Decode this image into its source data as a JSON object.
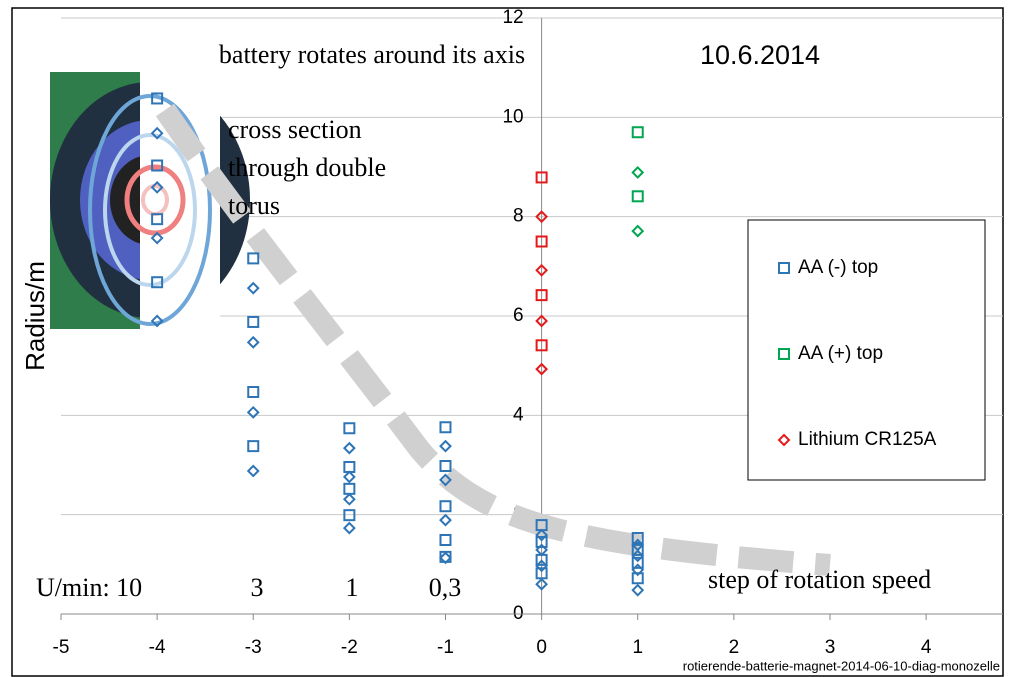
{
  "chart_data": {
    "type": "scatter",
    "title": "battery rotates around its axis",
    "date": "10.6.2014",
    "y_label": "Radius/m",
    "note_lines": [
      "cross section",
      "through double",
      "torus"
    ],
    "speed_labels": [
      "U/min: 10",
      "3",
      "1",
      "0,3"
    ],
    "trend_label": "step of rotation speed",
    "footer": "rotierende-batterie-magnet-2014-06-10-diag-monozelle",
    "xlim": [
      -5,
      4.8
    ],
    "ylim": [
      0,
      12
    ],
    "xticks": [
      -5,
      -4,
      -3,
      -2,
      -1,
      0,
      1,
      2,
      3,
      4
    ],
    "yticks": [
      0,
      2,
      4,
      6,
      8,
      10,
      12
    ],
    "grid": true,
    "series": [
      {
        "name": "AA (-) top",
        "color": "#2e75b6",
        "marker": "square",
        "x": [
          -4,
          -4,
          -4,
          -4,
          -3,
          -3,
          -3,
          -3,
          -2,
          -2,
          -2,
          -2,
          -1,
          -1,
          -1,
          -1,
          -1,
          0,
          0,
          0,
          0,
          1,
          1,
          1,
          1
        ],
        "values": [
          10.38,
          9.03,
          7.95,
          6.68,
          7.16,
          5.88,
          4.47,
          3.38,
          3.74,
          2.96,
          2.52,
          1.99,
          3.76,
          2.98,
          2.17,
          1.49,
          1.15,
          1.79,
          1.45,
          1.09,
          0.82,
          1.53,
          1.29,
          1.03,
          0.72
        ]
      },
      {
        "color": "#2e75b6",
        "marker": "diamond",
        "x": [
          -4,
          -4,
          -4,
          -4,
          -3,
          -3,
          -3,
          -3,
          -2,
          -2,
          -2,
          -2,
          -1,
          -1,
          -1,
          -1,
          0,
          0,
          0,
          0,
          1,
          1,
          1,
          1
        ],
        "values": [
          9.68,
          8.59,
          7.57,
          5.9,
          6.56,
          5.47,
          4.06,
          2.88,
          3.34,
          2.76,
          2.31,
          1.73,
          3.38,
          2.7,
          1.89,
          1.13,
          1.59,
          1.29,
          0.97,
          0.6,
          1.39,
          1.17,
          0.89,
          0.48
        ]
      },
      {
        "name": "AA (+) top",
        "color": "#00a650",
        "marker": "square",
        "x": [
          1,
          1
        ],
        "values": [
          9.7,
          8.41
        ]
      },
      {
        "color": "#00a650",
        "marker": "diamond",
        "x": [
          1,
          1
        ],
        "values": [
          8.89,
          7.71
        ]
      },
      {
        "color": "#e31a1c",
        "marker": "square",
        "x": [
          0,
          0,
          0,
          0
        ],
        "values": [
          8.79,
          7.5,
          6.42,
          5.41
        ]
      },
      {
        "name": "Lithium CR125A",
        "color": "#e31a1c",
        "marker": "diamond",
        "x": [
          0,
          0,
          0,
          0
        ],
        "values": [
          8.0,
          6.92,
          5.9,
          4.93
        ]
      }
    ]
  }
}
